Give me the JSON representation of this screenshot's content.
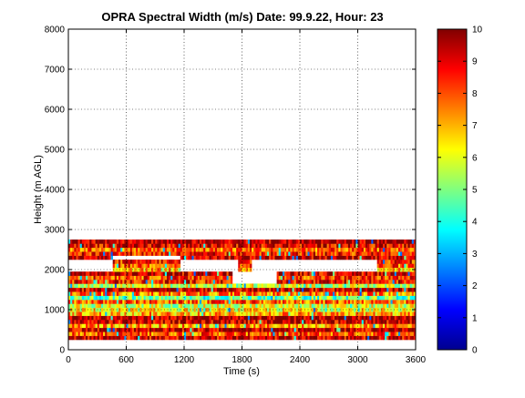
{
  "chart_data": {
    "type": "heatmap",
    "title": "OPRA Spectral Width (m/s)  Date: 99.9.22, Hour: 23",
    "xlabel": "Time (s)",
    "ylabel": "Height (m AGL)",
    "xlim": [
      0,
      3600
    ],
    "ylim": [
      0,
      8000
    ],
    "x_ticks": [
      "0",
      "600",
      "1200",
      "1800",
      "2400",
      "3000",
      "3600"
    ],
    "y_ticks": [
      "0",
      "1000",
      "2000",
      "3000",
      "4000",
      "5000",
      "6000",
      "7000",
      "8000"
    ],
    "colorbar": {
      "range": [
        0,
        10
      ],
      "ticks": [
        "0",
        "1",
        "2",
        "3",
        "4",
        "5",
        "6",
        "7",
        "8",
        "9",
        "10"
      ],
      "colormap": "jet"
    },
    "grid": true,
    "range_gates_m": {
      "start": 300,
      "step": 100,
      "end": 2700
    },
    "height_profile": [
      {
        "height": 300,
        "width": 9.2
      },
      {
        "height": 400,
        "width": 8.0
      },
      {
        "height": 500,
        "width": 9.4
      },
      {
        "height": 600,
        "width": 7.2
      },
      {
        "height": 700,
        "width": 9.3
      },
      {
        "height": 800,
        "width": 9.6
      },
      {
        "height": 900,
        "width": 7.0
      },
      {
        "height": 1000,
        "width": 6.2
      },
      {
        "height": 1100,
        "width": 5.8
      },
      {
        "height": 1200,
        "width": 7.8
      },
      {
        "height": 1300,
        "width": 4.8
      },
      {
        "height": 1400,
        "width": 7.5
      },
      {
        "height": 1500,
        "width": 9.3
      },
      {
        "height": 1600,
        "width": 5.8
      },
      {
        "height": 1700,
        "width": 8.6
      },
      {
        "height": 1800,
        "width": 8.2
      },
      {
        "height": 1900,
        "width": 9.3
      },
      {
        "height": 2000,
        "width": 7.0
      },
      {
        "height": 2100,
        "width": 8.0
      },
      {
        "height": 2200,
        "width": 8.5
      },
      {
        "height": 2300,
        "width": 9.4
      },
      {
        "height": 2400,
        "width": 8.5
      },
      {
        "height": 2500,
        "width": 7.8
      },
      {
        "height": 2600,
        "width": 9.0
      },
      {
        "height": 2700,
        "width": 9.6
      }
    ],
    "gaps": [
      {
        "height_min": 2000,
        "height_max": 2300,
        "t_start": 0,
        "t_end": 450
      },
      {
        "height_min": 2000,
        "height_max": 2300,
        "t_start": 1150,
        "t_end": 1750
      },
      {
        "height_min": 2000,
        "height_max": 2300,
        "t_start": 1900,
        "t_end": 3200
      },
      {
        "height_min": 1700,
        "height_max": 2000,
        "t_start": 1700,
        "t_end": 2150
      },
      {
        "height_min": 2300,
        "height_max": 2400,
        "t_start": 450,
        "t_end": 1150
      }
    ]
  }
}
